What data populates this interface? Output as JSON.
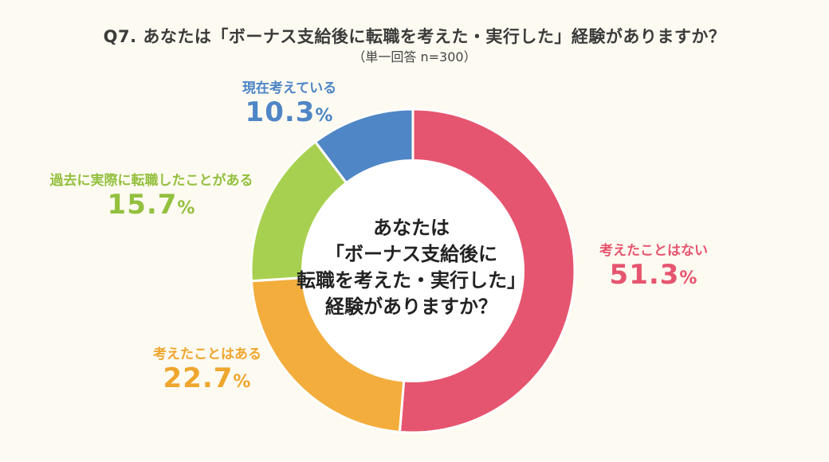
{
  "title": "Q7. あなたは「ボーナス支給後に転職を考えた・実行した」経験がありますか？",
  "subtitle": "（単一回答 n=300）",
  "center_lines": [
    "あなたは",
    "「ボーナス支給後に",
    "転職を考えた・実行した」",
    "経験がありますか？"
  ],
  "percent_sign": "%",
  "colors": {
    "never": "#e6556f",
    "considered": "#f3ad3d",
    "changed": "#a8d050",
    "current": "#4e86c6"
  },
  "chart_data": {
    "type": "pie",
    "donut": true,
    "title": "Q7. あなたは「ボーナス支給後に転職を考えた・実行した」経験がありますか？",
    "categories": [
      "考えたことはない",
      "考えたことはある",
      "過去に実際に転職したことがある",
      "現在考えている"
    ],
    "values": [
      51.3,
      22.7,
      15.7,
      10.3
    ],
    "unit": "%",
    "start": "top",
    "direction": "clockwise"
  }
}
